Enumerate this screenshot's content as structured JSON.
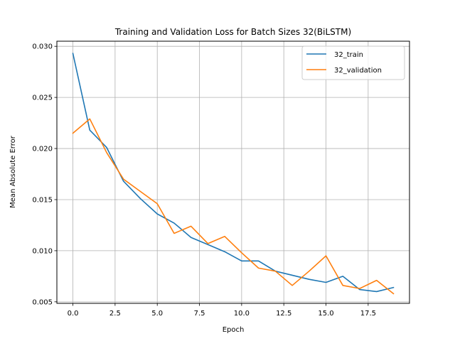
{
  "chart_data": {
    "type": "line",
    "title": "Training and Validation Loss for Batch Sizes 32(BiLSTM)",
    "xlabel": "Epoch",
    "ylabel": "Mean Absolute Error",
    "xlim": [
      -0.95,
      19.95
    ],
    "ylim": [
      0.00485,
      0.0305
    ],
    "x": [
      0,
      1,
      2,
      3,
      4,
      5,
      6,
      7,
      8,
      9,
      10,
      11,
      12,
      13,
      14,
      15,
      16,
      17,
      18,
      19
    ],
    "x_ticks": [
      0.0,
      2.5,
      5.0,
      7.5,
      10.0,
      12.5,
      15.0,
      17.5
    ],
    "x_tick_labels": [
      "0.0",
      "2.5",
      "5.0",
      "7.5",
      "10.0",
      "12.5",
      "15.0",
      "17.5"
    ],
    "y_ticks": [
      0.005,
      0.01,
      0.015,
      0.02,
      0.025,
      0.03
    ],
    "y_tick_labels": [
      "0.005",
      "0.010",
      "0.015",
      "0.020",
      "0.025",
      "0.030"
    ],
    "grid": true,
    "legend_position": "top-right",
    "series": [
      {
        "name": "32_train",
        "color": "#1f77b4",
        "values": [
          0.0293,
          0.0218,
          0.0201,
          0.0168,
          0.0151,
          0.0136,
          0.0127,
          0.0113,
          0.0106,
          0.0099,
          0.009,
          0.009,
          0.008,
          0.0076,
          0.0072,
          0.0069,
          0.0075,
          0.0062,
          0.006,
          0.0064
        ]
      },
      {
        "name": "32_validation",
        "color": "#ff7f0e",
        "values": [
          0.0215,
          0.0229,
          0.0196,
          0.017,
          0.0158,
          0.0146,
          0.0117,
          0.0124,
          0.0107,
          0.0114,
          0.0098,
          0.0083,
          0.008,
          0.0066,
          0.008,
          0.0095,
          0.0066,
          0.0063,
          0.0071,
          0.0058
        ]
      }
    ]
  }
}
